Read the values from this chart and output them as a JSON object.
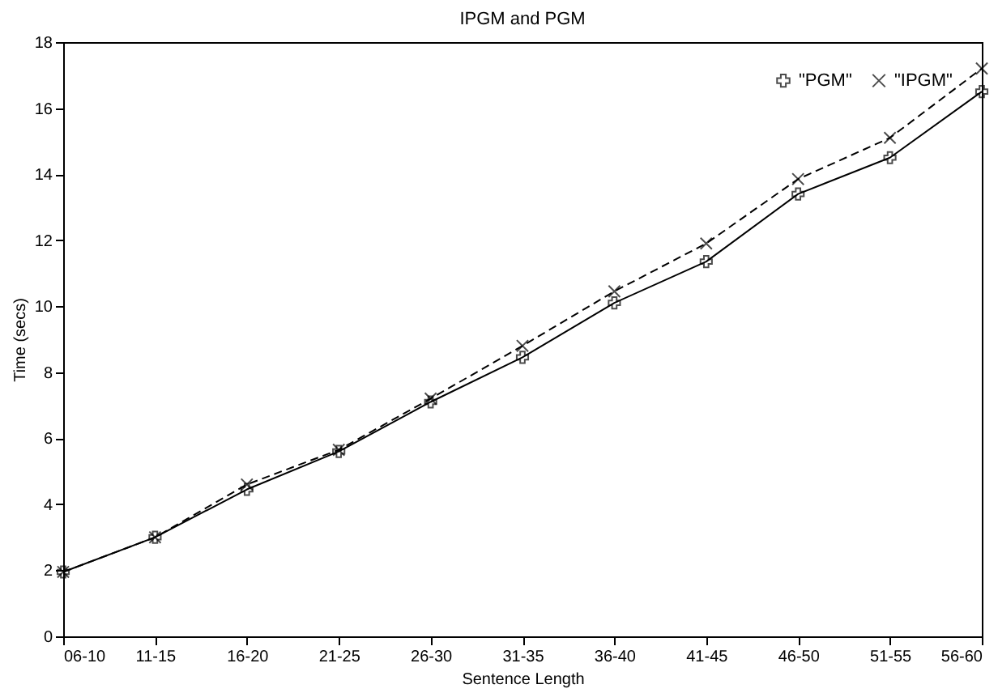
{
  "chart_data": {
    "type": "line",
    "title": "IPGM and PGM",
    "xlabel": "Sentence Length",
    "ylabel": "Time (secs)",
    "categories": [
      "06-10",
      "11-15",
      "16-20",
      "21-25",
      "26-30",
      "31-35",
      "36-40",
      "41-45",
      "46-50",
      "51-55",
      "56-60"
    ],
    "series": [
      {
        "name": "\"PGM\"",
        "color": "#000000",
        "marker": "plus",
        "line_style": "solid",
        "values": [
          1.95,
          3.0,
          4.45,
          5.6,
          7.1,
          8.45,
          10.1,
          11.35,
          13.4,
          14.5,
          16.5
        ]
      },
      {
        "name": "\"IPGM\"",
        "color": "#000000",
        "marker": "cross",
        "line_style": "dashed",
        "values": [
          1.95,
          3.0,
          4.6,
          5.65,
          7.2,
          8.8,
          10.45,
          11.9,
          13.85,
          15.1,
          17.2
        ]
      }
    ],
    "ylim": [
      0,
      18
    ],
    "yticks": [
      0,
      2,
      4,
      6,
      8,
      10,
      12,
      14,
      16,
      18
    ],
    "grid": false,
    "legend": "top right"
  }
}
